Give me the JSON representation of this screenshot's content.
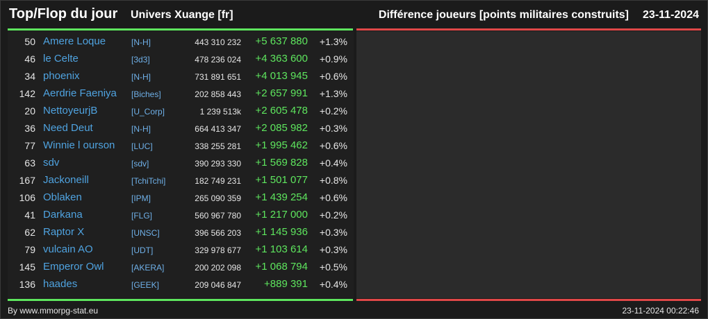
{
  "header": {
    "title": "Top/Flop du jour",
    "universe": "Univers Xuange [fr]",
    "metric": "Différence joueurs [points militaires construits]",
    "date": "23-11-2024"
  },
  "colors": {
    "gain": "#5ee65e",
    "loss": "#e04848",
    "link": "#4fa3e0"
  },
  "rows": [
    {
      "rank": "50",
      "name": "Amere Loque",
      "ally": "[N-H]",
      "points": "443 310 232",
      "diff": "+5 637 880",
      "pct": "+1.3%"
    },
    {
      "rank": "46",
      "name": "le Celte",
      "ally": "[3d3]",
      "points": "478 236 024",
      "diff": "+4 363 600",
      "pct": "+0.9%"
    },
    {
      "rank": "34",
      "name": "phoenix",
      "ally": "[N-H]",
      "points": "731 891 651",
      "diff": "+4 013 945",
      "pct": "+0.6%"
    },
    {
      "rank": "142",
      "name": "Aerdrie Faeniya",
      "ally": "[Biches]",
      "points": "202 858 443",
      "diff": "+2 657 991",
      "pct": "+1.3%"
    },
    {
      "rank": "20",
      "name": "NettoyeurjB",
      "ally": "[U_Corp]",
      "points": "1 239 513k",
      "diff": "+2 605 478",
      "pct": "+0.2%"
    },
    {
      "rank": "36",
      "name": "Need Deut",
      "ally": "[N-H]",
      "points": "664 413 347",
      "diff": "+2 085 982",
      "pct": "+0.3%"
    },
    {
      "rank": "77",
      "name": "Winnie l ourson",
      "ally": "[LUC]",
      "points": "338 255 281",
      "diff": "+1 995 462",
      "pct": "+0.6%"
    },
    {
      "rank": "63",
      "name": "sdv",
      "ally": "[sdv]",
      "points": "390 293 330",
      "diff": "+1 569 828",
      "pct": "+0.4%"
    },
    {
      "rank": "167",
      "name": "Jackoneill",
      "ally": "[TchiTchi]",
      "points": "182 749 231",
      "diff": "+1 501 077",
      "pct": "+0.8%"
    },
    {
      "rank": "106",
      "name": "Oblaken",
      "ally": "[IPM]",
      "points": "265 090 359",
      "diff": "+1 439 254",
      "pct": "+0.6%"
    },
    {
      "rank": "41",
      "name": "Darkana",
      "ally": "[FLG]",
      "points": "560 967 780",
      "diff": "+1 217 000",
      "pct": "+0.2%"
    },
    {
      "rank": "62",
      "name": "Raptor X",
      "ally": "[UNSC]",
      "points": "396 566 203",
      "diff": "+1 145 936",
      "pct": "+0.3%"
    },
    {
      "rank": "79",
      "name": "vulcain AO",
      "ally": "[UDT]",
      "points": "329 978 677",
      "diff": "+1 103 614",
      "pct": "+0.3%"
    },
    {
      "rank": "145",
      "name": "Emperor Owl",
      "ally": "[AKERA]",
      "points": "200 202 098",
      "diff": "+1 068 794",
      "pct": "+0.5%"
    },
    {
      "rank": "136",
      "name": "haades",
      "ally": "[GEEK]",
      "points": "209 046 847",
      "diff": "+889 391",
      "pct": "+0.4%"
    }
  ],
  "footer": {
    "credit": "By www.mmorpg-stat.eu",
    "timestamp": "23-11-2024 00:22:46"
  }
}
